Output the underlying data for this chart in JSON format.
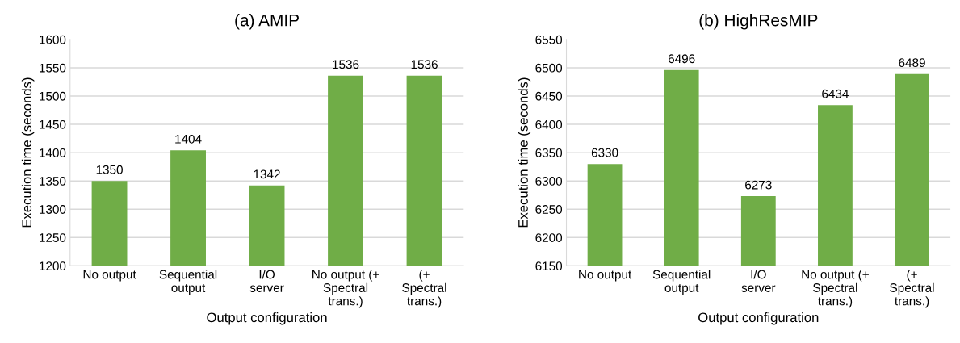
{
  "chart_data": [
    {
      "type": "bar",
      "title": "(a) AMIP",
      "xlabel": "Output configuration",
      "ylabel": "Execution time (seconds)",
      "categories": [
        "No output",
        "Sequential\noutput",
        "I/O\nserver",
        "No output (+\nSpectral\ntrans.)",
        "(+\nSpectral\ntrans.)"
      ],
      "values": [
        1350,
        1404,
        1342,
        1536,
        1536
      ],
      "color": "#70ad47",
      "ylim": [
        1200,
        1600
      ],
      "yticks": [
        1200,
        1250,
        1300,
        1350,
        1400,
        1450,
        1500,
        1550,
        1600
      ],
      "grid": "y",
      "data_labels": true
    },
    {
      "type": "bar",
      "title": "(b) HighResMIP",
      "xlabel": "Output configuration",
      "ylabel": "Execution time (seconds)",
      "categories": [
        "No output",
        "Sequential\noutput",
        "I/O\nserver",
        "No output (+\nSpectral\ntrans.)",
        "(+\nSpectral\ntrans.)"
      ],
      "values": [
        6330,
        6496,
        6273,
        6434,
        6489
      ],
      "color": "#70ad47",
      "ylim": [
        6150,
        6550
      ],
      "yticks": [
        6150,
        6200,
        6250,
        6300,
        6350,
        6400,
        6450,
        6500,
        6550
      ],
      "grid": "y",
      "data_labels": true
    }
  ]
}
